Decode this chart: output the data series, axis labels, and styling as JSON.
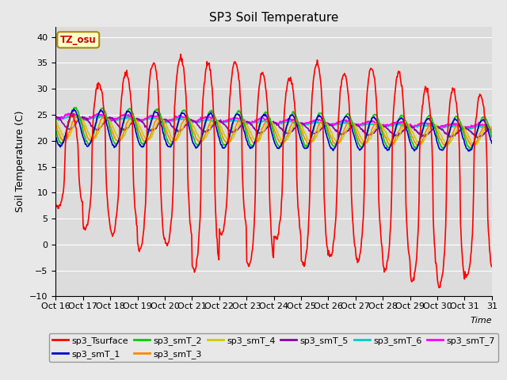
{
  "title": "SP3 Soil Temperature",
  "ylabel": "Soil Temperature (C)",
  "xlabel": "Time",
  "annotation": "TZ_osu",
  "ylim": [
    -10,
    42
  ],
  "yticks": [
    -10,
    -5,
    0,
    5,
    10,
    15,
    20,
    25,
    30,
    35,
    40
  ],
  "xtick_labels": [
    "Oct 16",
    "Oct 17",
    "Oct 18",
    "Oct 19",
    "Oct 20",
    "Oct 21",
    "Oct 22",
    "Oct 23",
    "Oct 24",
    "Oct 25",
    "Oct 26",
    "Oct 27",
    "Oct 28",
    "Oct 29",
    "Oct 30",
    "Oct 31"
  ],
  "n_days": 16,
  "colors": {
    "sp3_Tsurface": "#FF0000",
    "sp3_smT_1": "#0000CC",
    "sp3_smT_2": "#00CC00",
    "sp3_smT_3": "#FF8800",
    "sp3_smT_4": "#CCCC00",
    "sp3_smT_5": "#8800AA",
    "sp3_smT_6": "#00CCCC",
    "sp3_smT_7": "#FF00FF"
  },
  "background_color": "#E8E8E8",
  "plot_bg_color": "#DCDCDC",
  "title_fontsize": 11,
  "legend_fontsize": 8,
  "axis_label_fontsize": 9,
  "tick_fontsize": 8,
  "surface_peaks": [
    25,
    31,
    33,
    35,
    36,
    35,
    35,
    33,
    32,
    35,
    33,
    34,
    33,
    30,
    30,
    29
  ],
  "surface_troughs": [
    7,
    3,
    2,
    -1,
    0,
    -5,
    2,
    -4,
    1,
    -4,
    -2,
    -3,
    -5,
    -7,
    -8,
    -6
  ]
}
